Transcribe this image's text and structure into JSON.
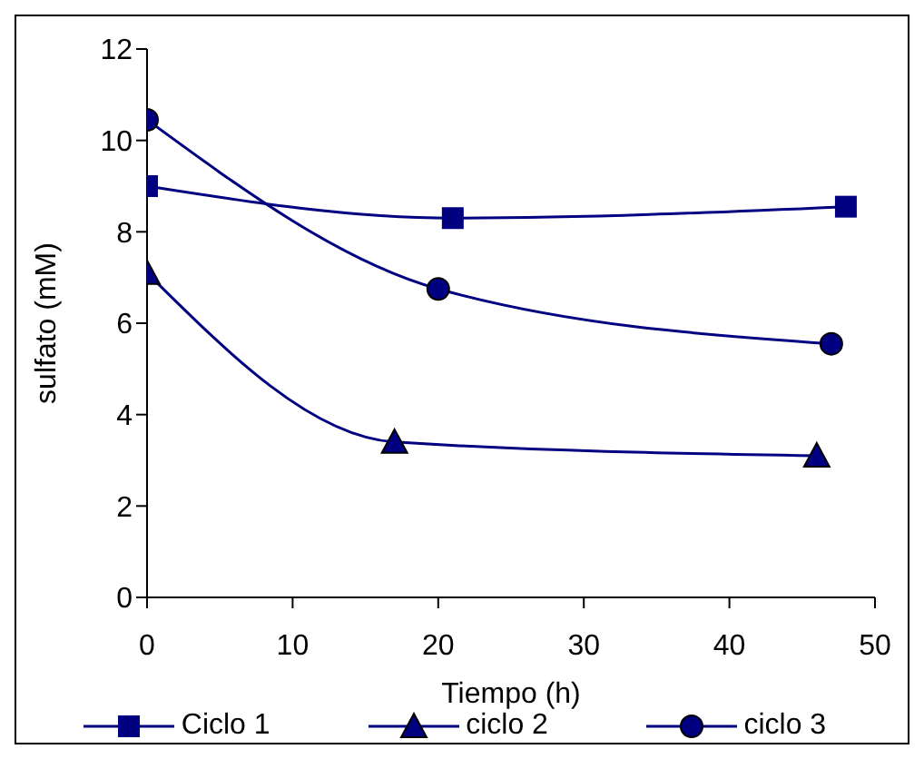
{
  "chart_data": {
    "type": "line",
    "xlabel": "Tiempo (h)",
    "ylabel": "sulfato (mM)",
    "xlim": [
      0,
      50
    ],
    "xticks": [
      0,
      10,
      20,
      30,
      40,
      50
    ],
    "ylim": [
      0,
      12
    ],
    "yticks": [
      0,
      2,
      4,
      6,
      8,
      10,
      12
    ],
    "grid": false,
    "legend": "bottom",
    "series": [
      {
        "name": "Ciclo 1",
        "color": "#000080",
        "marker": "square",
        "x": [
          0,
          21,
          48
        ],
        "values": [
          9.0,
          8.3,
          8.55
        ]
      },
      {
        "name": "ciclo 2",
        "color": "#000080",
        "marker": "triangle",
        "x": [
          0,
          17,
          46
        ],
        "values": [
          7.1,
          3.4,
          3.1
        ]
      },
      {
        "name": "ciclo 3",
        "color": "#000080",
        "marker": "circle",
        "x": [
          0,
          20,
          47
        ],
        "values": [
          10.45,
          6.75,
          5.55
        ]
      }
    ]
  }
}
